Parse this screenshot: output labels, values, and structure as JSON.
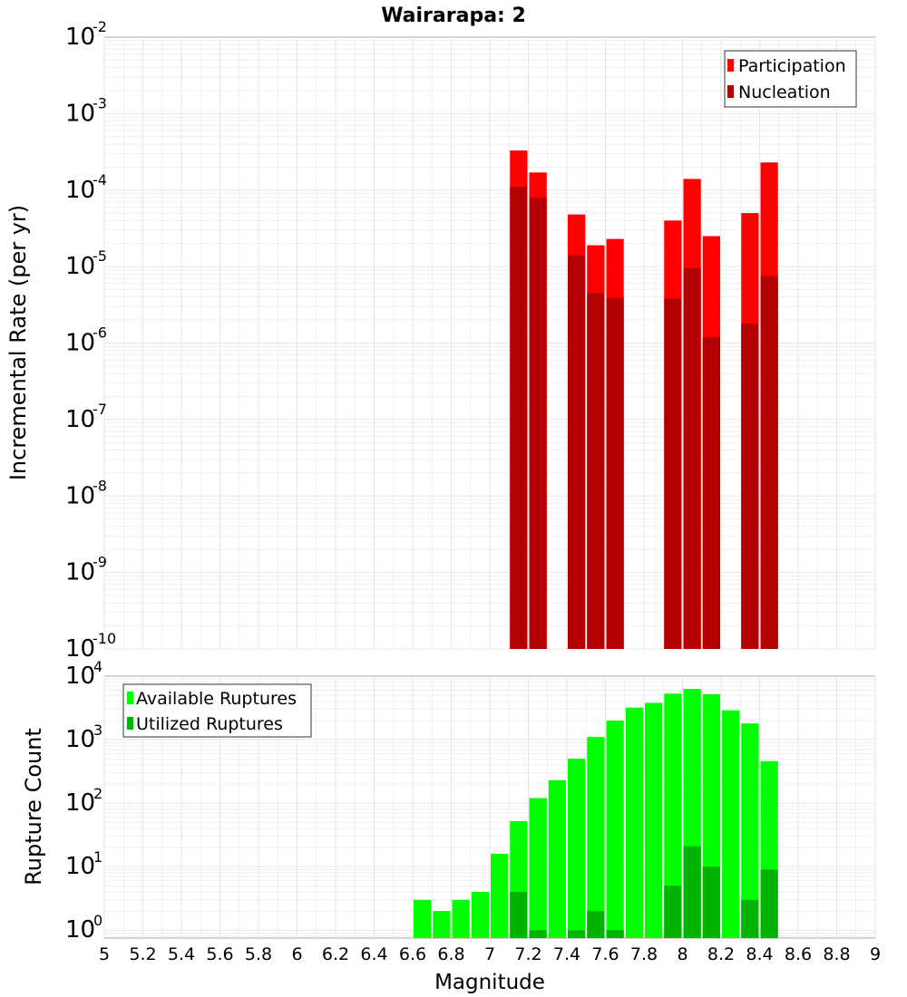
{
  "title": "Wairarapa: 2",
  "colors": {
    "participation": "#ff0000",
    "nucleation": "#b30000",
    "available": "#00ff00",
    "utilized": "#00b300",
    "grid": "#e6e6e6",
    "frame": "#aaaaaa"
  },
  "chart_data": [
    {
      "type": "bar",
      "scale": "log",
      "ylabel": "Incremental Rate (per yr)",
      "xlim": [
        5,
        9
      ],
      "ylim_exponent": [
        -10,
        -2
      ],
      "ytick_exponents": [
        "-10",
        "-9",
        "-8",
        "-7",
        "-6",
        "-5",
        "-4",
        "-3",
        "-2"
      ],
      "bar_width": 0.1,
      "legend_position": "top-right",
      "series": [
        {
          "name": "Participation",
          "color_key": "participation",
          "x": [
            7.15,
            7.25,
            7.45,
            7.55,
            7.65,
            7.95,
            8.05,
            8.15,
            8.35,
            8.45
          ],
          "values": [
            0.00033,
            0.00017,
            4.8e-05,
            1.9e-05,
            2.3e-05,
            4e-05,
            0.00014,
            2.5e-05,
            5e-05,
            0.00023
          ]
        },
        {
          "name": "Nucleation",
          "color_key": "nucleation",
          "x": [
            7.15,
            7.25,
            7.45,
            7.55,
            7.65,
            7.95,
            8.05,
            8.15,
            8.35,
            8.45
          ],
          "values": [
            0.00011,
            8e-05,
            1.4e-05,
            4.5e-06,
            3.9e-06,
            3.8e-06,
            9.5e-06,
            1.2e-06,
            1.8e-06,
            7.5e-06
          ]
        }
      ]
    },
    {
      "type": "bar",
      "scale": "log",
      "xlabel": "Magnitude",
      "ylabel": "Rupture Count",
      "xlim": [
        5,
        9
      ],
      "ylim": [
        0.75,
        10000
      ],
      "ytick_exponents": [
        "0",
        "1",
        "2",
        "3",
        "4"
      ],
      "bar_width": 0.1,
      "legend_position": "top-left",
      "xticks": [
        "5",
        "5.2",
        "5.4",
        "5.6",
        "5.8",
        "6",
        "6.2",
        "6.4",
        "6.6",
        "6.8",
        "7",
        "7.2",
        "7.4",
        "7.6",
        "7.8",
        "8",
        "8.2",
        "8.4",
        "8.6",
        "8.8",
        "9"
      ],
      "series": [
        {
          "name": "Available Ruptures",
          "color_key": "available",
          "x": [
            6.65,
            6.75,
            6.85,
            6.95,
            7.05,
            7.15,
            7.25,
            7.35,
            7.45,
            7.55,
            7.65,
            7.75,
            7.85,
            7.95,
            8.05,
            8.15,
            8.25,
            8.35,
            8.45
          ],
          "values": [
            3,
            2,
            3,
            4,
            16,
            52,
            120,
            230,
            500,
            1100,
            2000,
            3200,
            3800,
            5300,
            6300,
            5200,
            2900,
            1800,
            460
          ]
        },
        {
          "name": "Utilized Ruptures",
          "color_key": "utilized",
          "x": [
            7.15,
            7.25,
            7.45,
            7.55,
            7.65,
            7.95,
            8.05,
            8.15,
            8.35,
            8.45
          ],
          "values": [
            4,
            1,
            1,
            2,
            1,
            5,
            21,
            10,
            3,
            9
          ]
        }
      ]
    }
  ]
}
